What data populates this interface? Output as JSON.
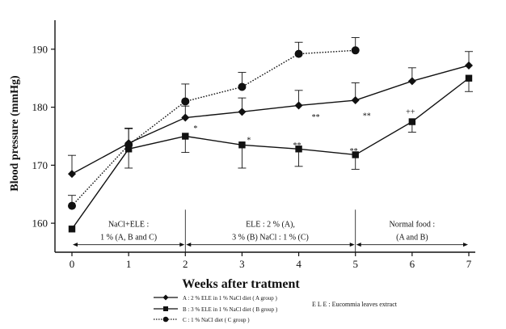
{
  "chart_data": {
    "type": "line",
    "xlabel": "Weeks after tratment",
    "ylabel": "Blood pressure (mmHg)",
    "xlim": [
      0,
      7
    ],
    "ylim": [
      155,
      195
    ],
    "x_ticks": [
      0,
      1,
      2,
      3,
      4,
      5,
      6,
      7
    ],
    "y_ticks": [
      160,
      170,
      180,
      190
    ],
    "grid": false,
    "series": [
      {
        "id": "A",
        "marker": "diamond",
        "line": "solid",
        "x": [
          0,
          1,
          2,
          3,
          4,
          5,
          6,
          7
        ],
        "y": [
          168.5,
          173.8,
          178.2,
          179.2,
          180.3,
          181.2,
          184.5,
          187.2
        ],
        "err_up": [
          3.2,
          2.6,
          2.0,
          2.4,
          2.6,
          3.0,
          2.3,
          2.4
        ],
        "err_down": [
          0,
          0,
          0,
          0,
          0,
          0,
          0,
          0
        ]
      },
      {
        "id": "B",
        "marker": "square",
        "line": "solid",
        "x": [
          0,
          1,
          2,
          3,
          4,
          5,
          6,
          7
        ],
        "y": [
          159.0,
          172.8,
          175.0,
          173.5,
          172.8,
          171.8,
          177.5,
          185.0
        ],
        "err_up": [
          0,
          0,
          0,
          0,
          0,
          0,
          0,
          0
        ],
        "err_down": [
          0,
          3.3,
          2.8,
          4.0,
          3.0,
          2.5,
          1.8,
          2.3
        ]
      },
      {
        "id": "C",
        "marker": "circle",
        "line": "dotted",
        "x": [
          0,
          1,
          2,
          3,
          4,
          5
        ],
        "y": [
          163.0,
          173.5,
          181.0,
          183.5,
          189.2,
          189.8
        ],
        "err_up": [
          1.8,
          2.8,
          3.0,
          2.5,
          2.0,
          2.2
        ],
        "err_down": [
          0,
          0,
          0,
          0,
          0,
          0
        ]
      }
    ],
    "annotations": [
      {
        "text": "*",
        "x": 2.18,
        "y": 176.3
      },
      {
        "text": "*",
        "x": 3.12,
        "y": 174.3
      },
      {
        "text": "**",
        "x": 3.97,
        "y": 173.4
      },
      {
        "text": "**",
        "x": 4.97,
        "y": 172.4
      },
      {
        "text": "**",
        "x": 4.3,
        "y": 178.3
      },
      {
        "text": "**",
        "x": 5.2,
        "y": 178.5
      },
      {
        "text": "++",
        "x": 5.97,
        "y": 179.2
      }
    ],
    "phases": [
      {
        "lines": [
          "NaCl+ELE :",
          "1 % (A, B and C)"
        ],
        "x_start": 0,
        "x_end": 2
      },
      {
        "lines": [
          "ELE : 2 % (A),",
          "3 % (B) NaCl : 1 % (C)"
        ],
        "x_start": 2,
        "x_end": 5
      },
      {
        "lines": [
          "Normal food :",
          "(A and B)"
        ],
        "x_start": 5,
        "x_end": 7
      }
    ],
    "phase_arrow_y": 156.3,
    "phase_dividers": [
      2,
      5
    ],
    "legend": {
      "position": "bottom",
      "entries": [
        {
          "marker": "diamond",
          "line": "solid",
          "text": "A : 2 % ELE in 1 % NaCl diet ( A group )"
        },
        {
          "marker": "square",
          "line": "solid",
          "text": "B : 3 % ELE in 1 % NaCl diet ( B group )"
        },
        {
          "marker": "circle",
          "line": "dotted",
          "text": "C : 1 % NaCl diet ( C group )"
        }
      ],
      "note": "E L E :  Eucommia leaves extract"
    }
  }
}
